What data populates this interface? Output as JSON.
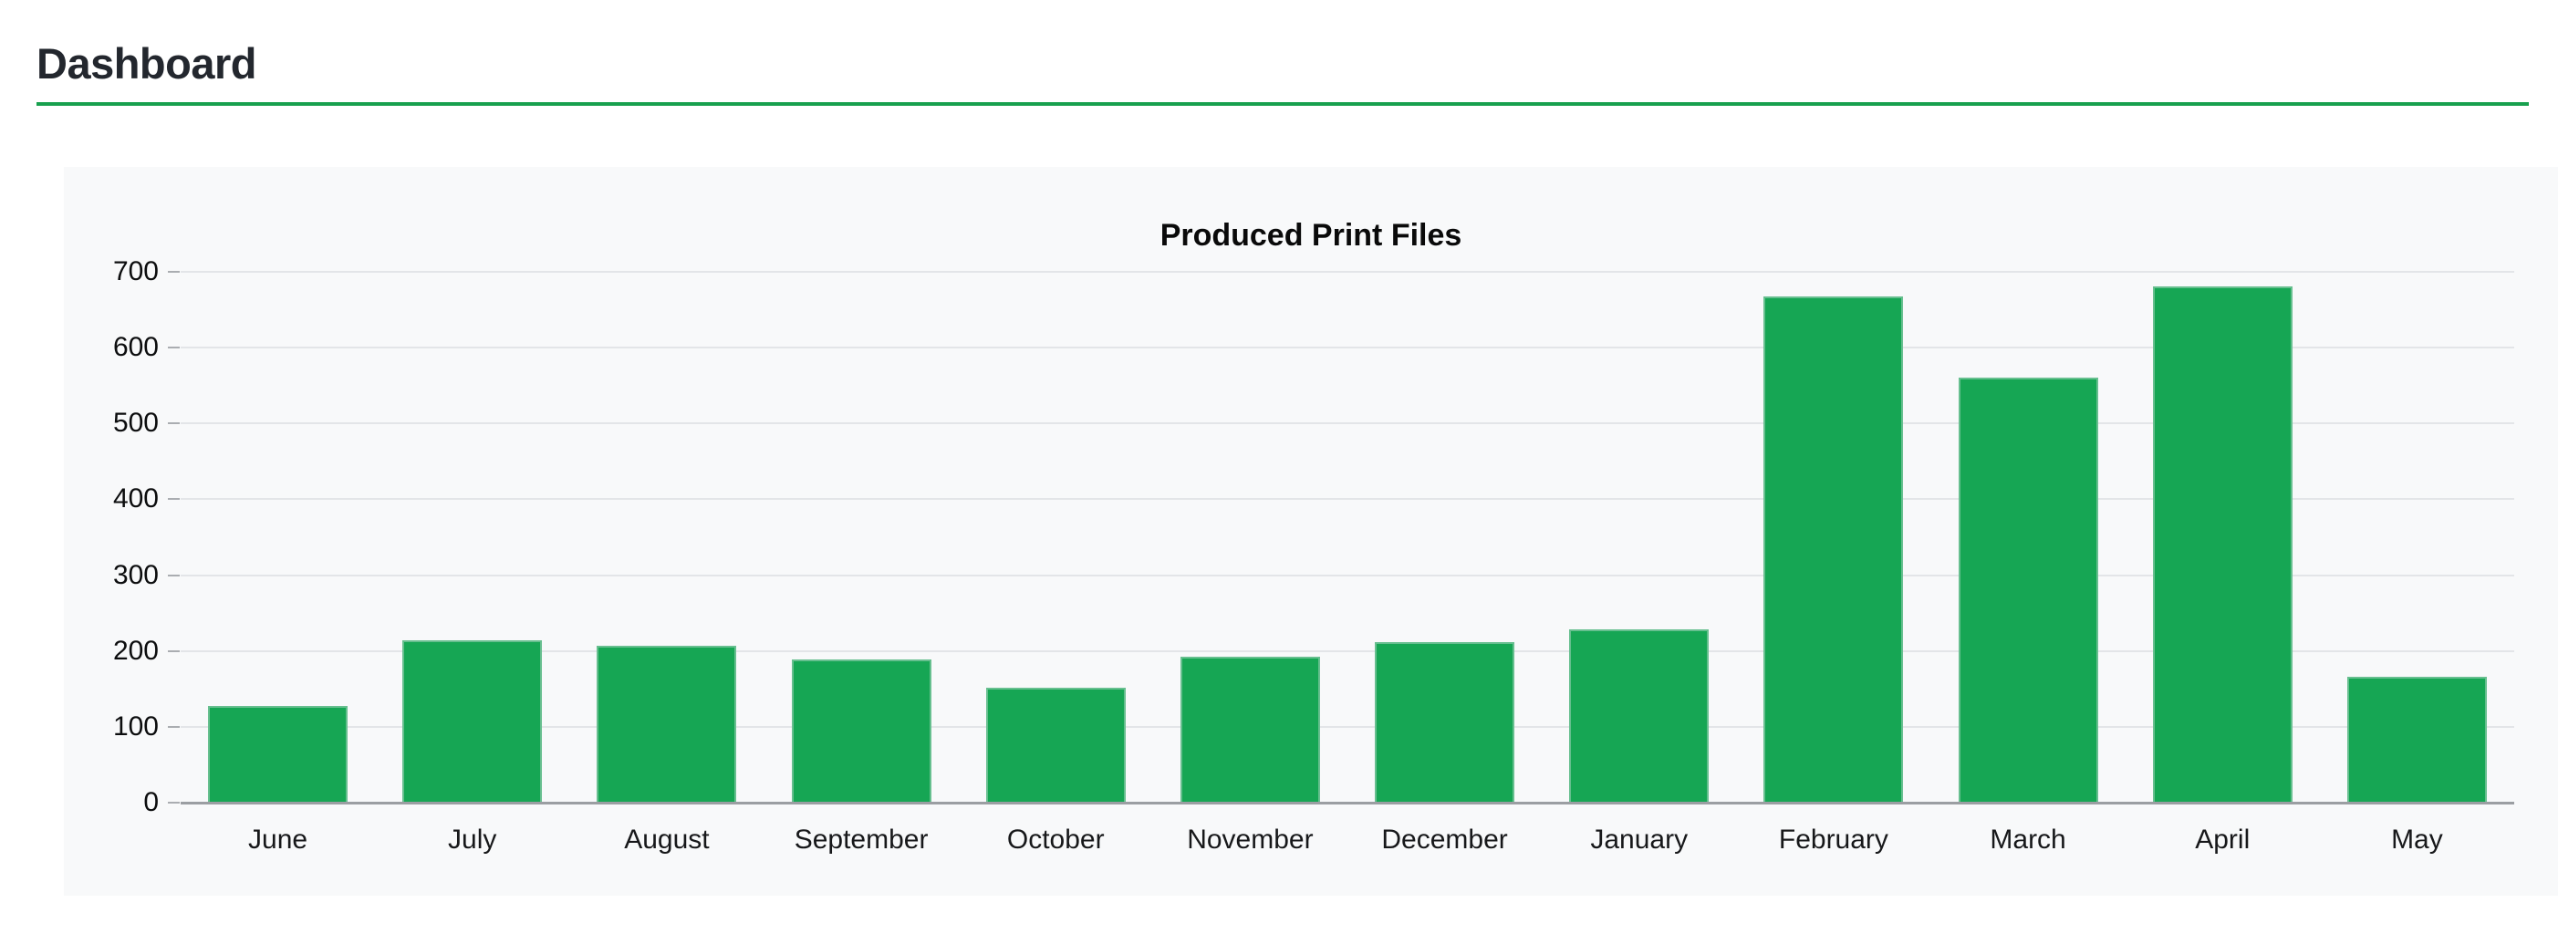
{
  "page": {
    "title": "Dashboard",
    "accent_color": "#18a04e"
  },
  "chart_data": {
    "type": "bar",
    "title": "Produced Print Files",
    "categories": [
      "June",
      "July",
      "August",
      "September",
      "October",
      "November",
      "December",
      "January",
      "February",
      "March",
      "April",
      "May"
    ],
    "values": [
      127,
      214,
      207,
      189,
      152,
      193,
      212,
      229,
      667,
      561,
      681,
      166
    ],
    "xlabel": "",
    "ylabel": "",
    "ylim": [
      0,
      700
    ],
    "ytick_step": 100,
    "ytick_labels": [
      "0",
      "100",
      "200",
      "300",
      "400",
      "500",
      "600",
      "700"
    ],
    "grid": true,
    "legend_position": "none",
    "bar_color": "#16a654",
    "bar_border_color": "#67bf8f"
  }
}
